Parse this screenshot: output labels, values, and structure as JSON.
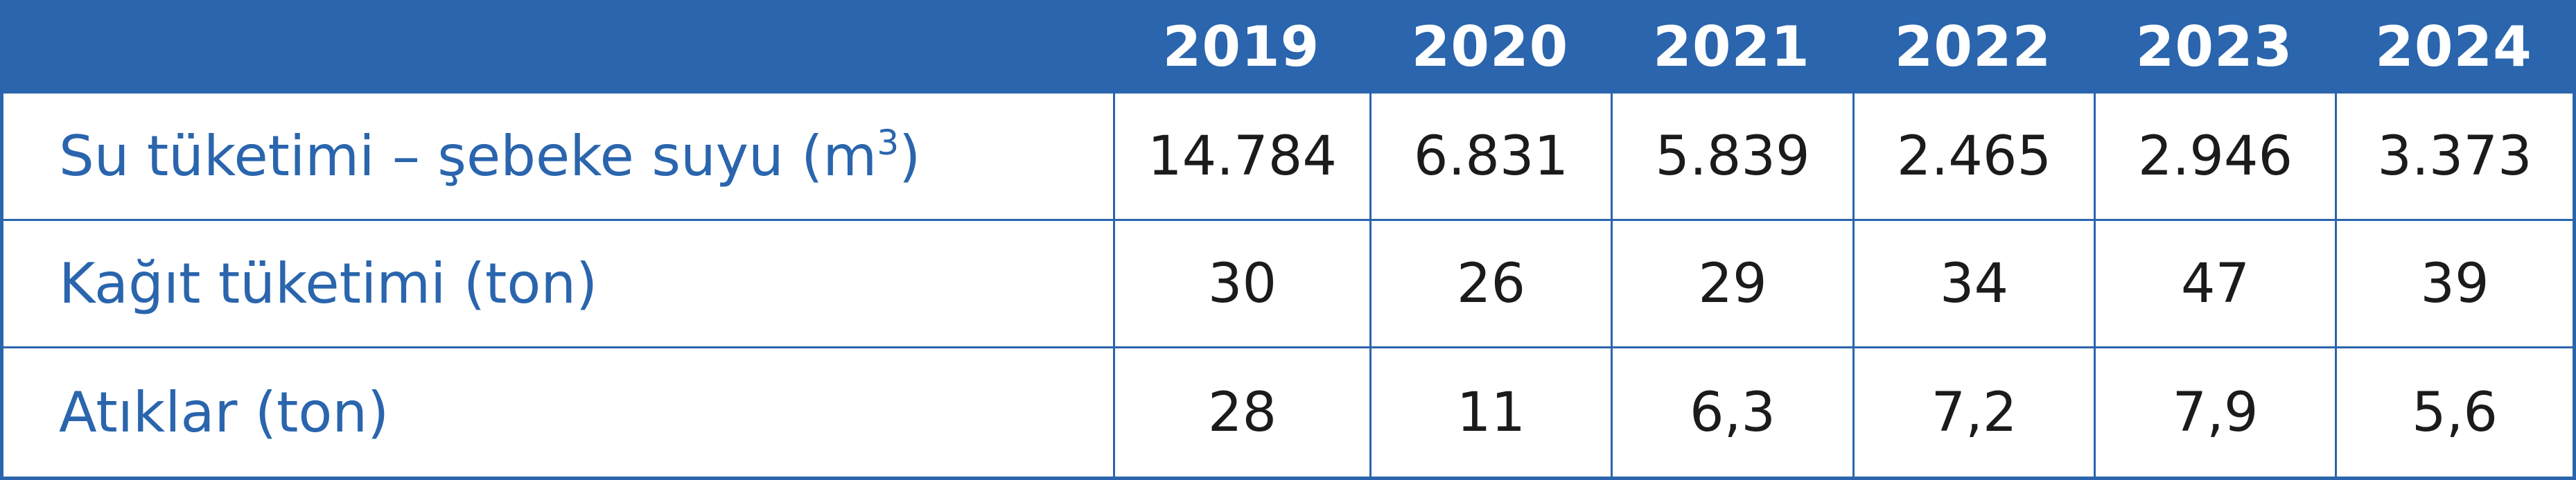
{
  "table": {
    "header": {
      "corner": "",
      "years": [
        "2019",
        "2020",
        "2021",
        "2022",
        "2023",
        "2024"
      ]
    },
    "rows": [
      {
        "label": "Su tüketimi – şebeke suyu (m",
        "label_sup": "3",
        "label_suffix": ")",
        "values": [
          "14.784",
          "6.831",
          "5.839",
          "2.465",
          "2.946",
          "3.373"
        ]
      },
      {
        "label": "Kağıt tüketimi (ton)",
        "values": [
          "30",
          "26",
          "29",
          "34",
          "47",
          "39"
        ]
      },
      {
        "label": "Atıklar (ton)",
        "values": [
          "28",
          "11",
          "6,3",
          "7,2",
          "7,9",
          "5,6"
        ]
      }
    ],
    "colors": {
      "accent": "#2a65ad",
      "header_text": "#ffffff",
      "value_text": "#1b1b1b"
    }
  }
}
